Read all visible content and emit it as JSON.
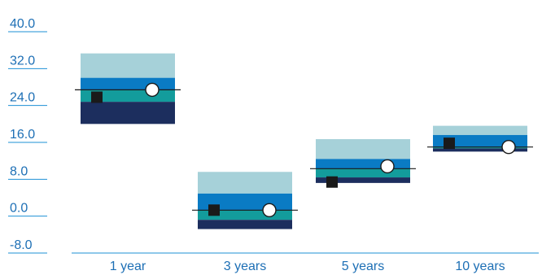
{
  "chart_data": {
    "type": "floating-bar",
    "title": "",
    "xlabel": "",
    "ylabel": "",
    "ylim": [
      -8.0,
      40.0
    ],
    "yticks": [
      "40.0",
      "32.0",
      "24.0",
      "16.0",
      "8.0",
      "0.0",
      "-8.0"
    ],
    "ytick_values": [
      40,
      32,
      24,
      16,
      8,
      0,
      -8
    ],
    "categories": [
      "1 year",
      "3 years",
      "5 years",
      "10 years"
    ],
    "bands": [
      {
        "q5": 20.0,
        "q25": 24.8,
        "median": 27.4,
        "q75": 30.0,
        "q95": 35.3
      },
      {
        "q5": -2.8,
        "q25": -0.8,
        "median": 1.3,
        "q75": 4.9,
        "q95": 9.6
      },
      {
        "q5": 7.2,
        "q25": 8.4,
        "median": 10.3,
        "q75": 12.4,
        "q95": 16.7
      },
      {
        "q5": 14.0,
        "q25": 14.7,
        "median": 15.0,
        "q75": 17.6,
        "q95": 19.6
      }
    ],
    "square_values": [
      25.8,
      1.3,
      7.4,
      15.8
    ],
    "circle_values": [
      27.4,
      1.3,
      10.8,
      15.0
    ],
    "colors": {
      "band_outer": "#a6d1d9",
      "band_upper": "#0a7bc4",
      "band_middle": "#139c9c",
      "band_lower": "#1c2e5e",
      "axis_blue": "#1e90d6",
      "text_blue": "#1d6fb5",
      "marker": "#1a1a1a"
    }
  }
}
